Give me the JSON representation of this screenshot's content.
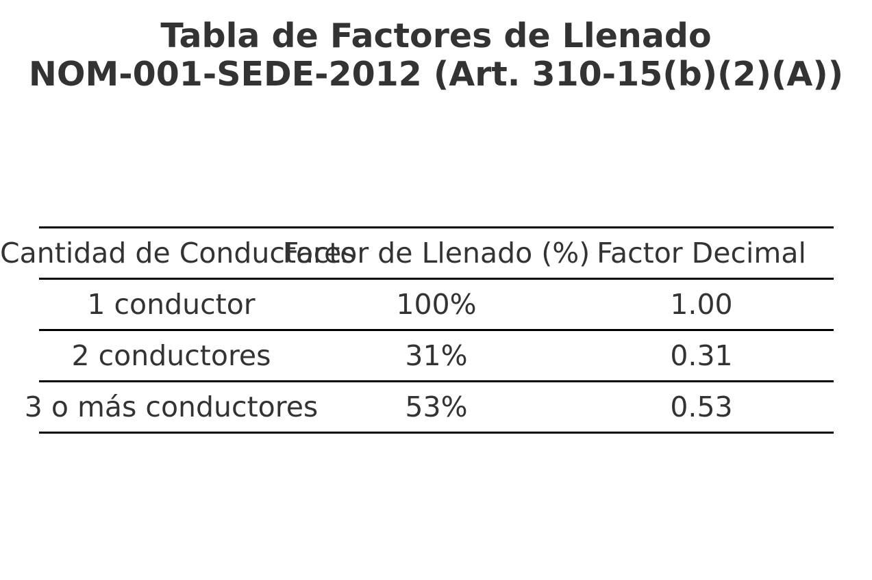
{
  "title": {
    "line1": "Tabla de Factores de Llenado",
    "line2": "NOM-001-SEDE-2012 (Art. 310-15(b)(2)(A))"
  },
  "table": {
    "headers": [
      "Cantidad de Conductores",
      "Factor de Llenado (%)",
      "Factor Decimal"
    ],
    "rows": [
      [
        "1 conductor",
        "100%",
        "1.00"
      ],
      [
        "2 conductores",
        "31%",
        "0.31"
      ],
      [
        "3 o más conductores",
        "53%",
        "0.53"
      ]
    ]
  },
  "colors": {
    "text": "#333333",
    "rule": "#000000",
    "background": "#ffffff"
  }
}
